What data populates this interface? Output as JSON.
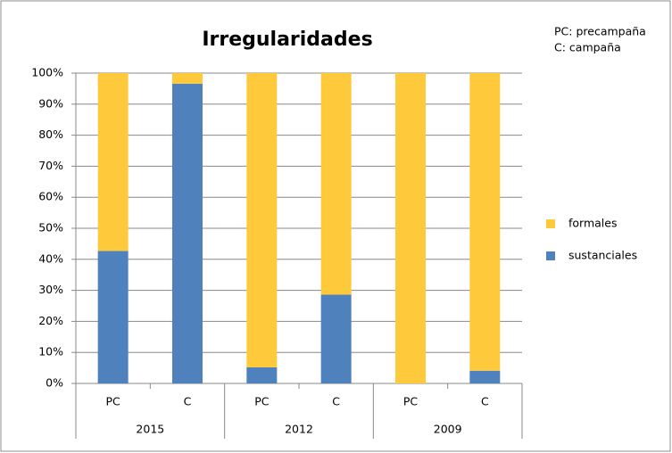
{
  "chart_data": {
    "type": "stacked_bar",
    "title": "Irregularidades",
    "annotations": [
      "PC: precampaña",
      "C: campaña"
    ],
    "categories": [
      "PC",
      "C",
      "PC",
      "C",
      "PC",
      "C"
    ],
    "groups": [
      "2015",
      "2012",
      "2009"
    ],
    "series": [
      {
        "name": "sustanciales",
        "color": "#4f81bd",
        "values": [
          42.7,
          96.6,
          5.2,
          28.6,
          0,
          4.1
        ]
      },
      {
        "name": "formales",
        "color": "#ffc93c",
        "values": [
          57.3,
          3.4,
          94.8,
          71.4,
          100,
          95.9
        ]
      }
    ],
    "ylim": [
      0,
      100
    ],
    "yticks": [
      {
        "value": 0,
        "label": "0%"
      },
      {
        "value": 10,
        "label": "10%"
      },
      {
        "value": 20,
        "label": "20%"
      },
      {
        "value": 30,
        "label": "30%"
      },
      {
        "value": 40,
        "label": "40%"
      },
      {
        "value": 50,
        "label": "50%"
      },
      {
        "value": 60,
        "label": "60%"
      },
      {
        "value": 70,
        "label": "70%"
      },
      {
        "value": 80,
        "label": "80%"
      },
      {
        "value": 90,
        "label": "90%"
      },
      {
        "value": 100,
        "label": "100%"
      }
    ],
    "grid": true,
    "legend": "right"
  }
}
